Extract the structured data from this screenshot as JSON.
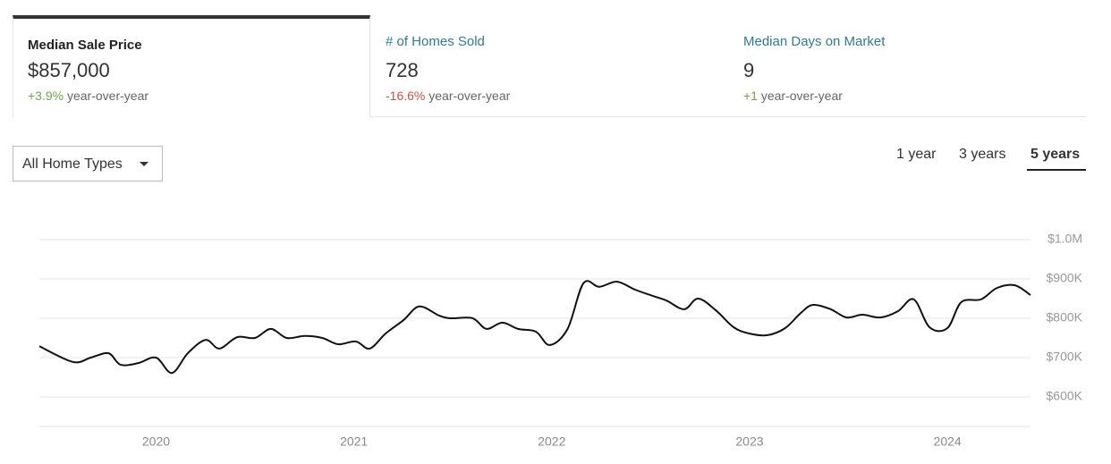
{
  "tabs": [
    {
      "title": "Median Sale Price",
      "value": "$857,000",
      "change": "+3.9%",
      "change_label": "year-over-year"
    },
    {
      "title": "# of Homes Sold",
      "value": "728",
      "change": "-16.6%",
      "change_label": "year-over-year"
    },
    {
      "title": "Median Days on Market",
      "value": "9",
      "change": "+1",
      "change_label": "year-over-year"
    }
  ],
  "filter": "All Home Types",
  "ranges": [
    "1 year",
    "3 years",
    "5 years"
  ],
  "chart_data": {
    "type": "line",
    "x": [
      2019.41,
      2019.58,
      2019.67,
      2019.76,
      2019.82,
      2019.91,
      2020.0,
      2020.08,
      2020.16,
      2020.25,
      2020.32,
      2020.41,
      2020.5,
      2020.58,
      2020.66,
      2020.75,
      2020.84,
      2020.92,
      2021.01,
      2021.08,
      2021.16,
      2021.25,
      2021.33,
      2021.43,
      2021.49,
      2021.6,
      2021.67,
      2021.75,
      2021.83,
      2021.92,
      2021.99,
      2022.08,
      2022.16,
      2022.24,
      2022.33,
      2022.42,
      2022.51,
      2022.58,
      2022.67,
      2022.74,
      2022.83,
      2022.92,
      2023.0,
      2023.09,
      2023.18,
      2023.26,
      2023.32,
      2023.41,
      2023.49,
      2023.57,
      2023.66,
      2023.75,
      2023.83,
      2023.91,
      2024.0,
      2024.07,
      2024.17,
      2024.25,
      2024.34,
      2024.42
    ],
    "values": [
      729000,
      689000,
      700000,
      711000,
      682000,
      686000,
      700000,
      661000,
      711000,
      745000,
      723000,
      752000,
      750000,
      773000,
      750000,
      755000,
      750000,
      734000,
      741000,
      723000,
      761000,
      795000,
      830000,
      807000,
      800000,
      800000,
      773000,
      789000,
      773000,
      766000,
      732000,
      773000,
      889000,
      880000,
      893000,
      873000,
      857000,
      845000,
      823000,
      850000,
      820000,
      777000,
      761000,
      757000,
      775000,
      814000,
      834000,
      823000,
      802000,
      809000,
      802000,
      818000,
      848000,
      777000,
      775000,
      841000,
      848000,
      877000,
      884000,
      859000
    ],
    "color": "#111111",
    "xlim": [
      2019.41,
      2024.42
    ],
    "xticks": [
      2020,
      2021,
      2022,
      2023,
      2024
    ],
    "ylim": [
      525000,
      1000000
    ],
    "yticks": [
      {
        "value": 1000000,
        "label": "$1.0M"
      },
      {
        "value": 900000,
        "label": "$900K"
      },
      {
        "value": 800000,
        "label": "$800K"
      },
      {
        "value": 700000,
        "label": "$700K"
      },
      {
        "value": 600000,
        "label": "$600K"
      }
    ],
    "grid": true
  }
}
